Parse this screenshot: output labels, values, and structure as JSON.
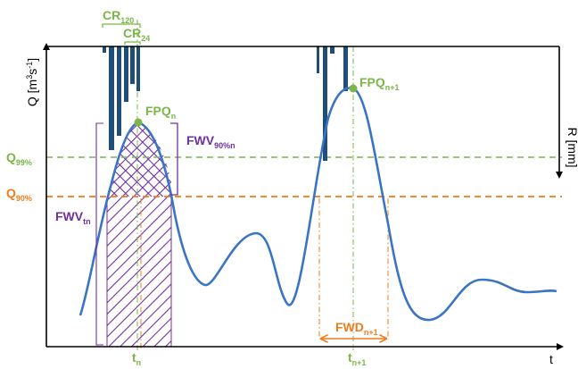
{
  "colors": {
    "hydrograph": "#3a74c4",
    "rainfall": "#1f4e79",
    "green": "#7ab648",
    "orange": "#f07b1b",
    "purple": "#7030a0",
    "axis": "#000000"
  },
  "axes": {
    "q": {
      "prefix": "Q [m",
      "sup3": "3",
      "mid": "s",
      "supm1": "-1",
      "suffix": "]"
    },
    "r": "R [mm]",
    "t": "t"
  },
  "thresholds": {
    "q99": {
      "main": "Q",
      "sub": "99%"
    },
    "q90": {
      "main": "Q",
      "sub": "90%"
    }
  },
  "labels": {
    "cr120": {
      "main": "CR",
      "sub": "120"
    },
    "cr24": {
      "main": "CR",
      "sub": "24"
    },
    "fpq_n": {
      "main": "FPQ",
      "sub": "n"
    },
    "fpq_n1": {
      "main": "FPQ",
      "sub": "n+1"
    },
    "fwv90": {
      "main": "FWV",
      "sub": "90%n"
    },
    "fwvtn": {
      "main": "FWV",
      "sub": "tn"
    },
    "fwd": {
      "main": "FWD",
      "sub": "n+1"
    },
    "t_n": {
      "main": "t",
      "sub": "n"
    },
    "t_n1": {
      "main": "t",
      "sub": "n+1"
    }
  }
}
